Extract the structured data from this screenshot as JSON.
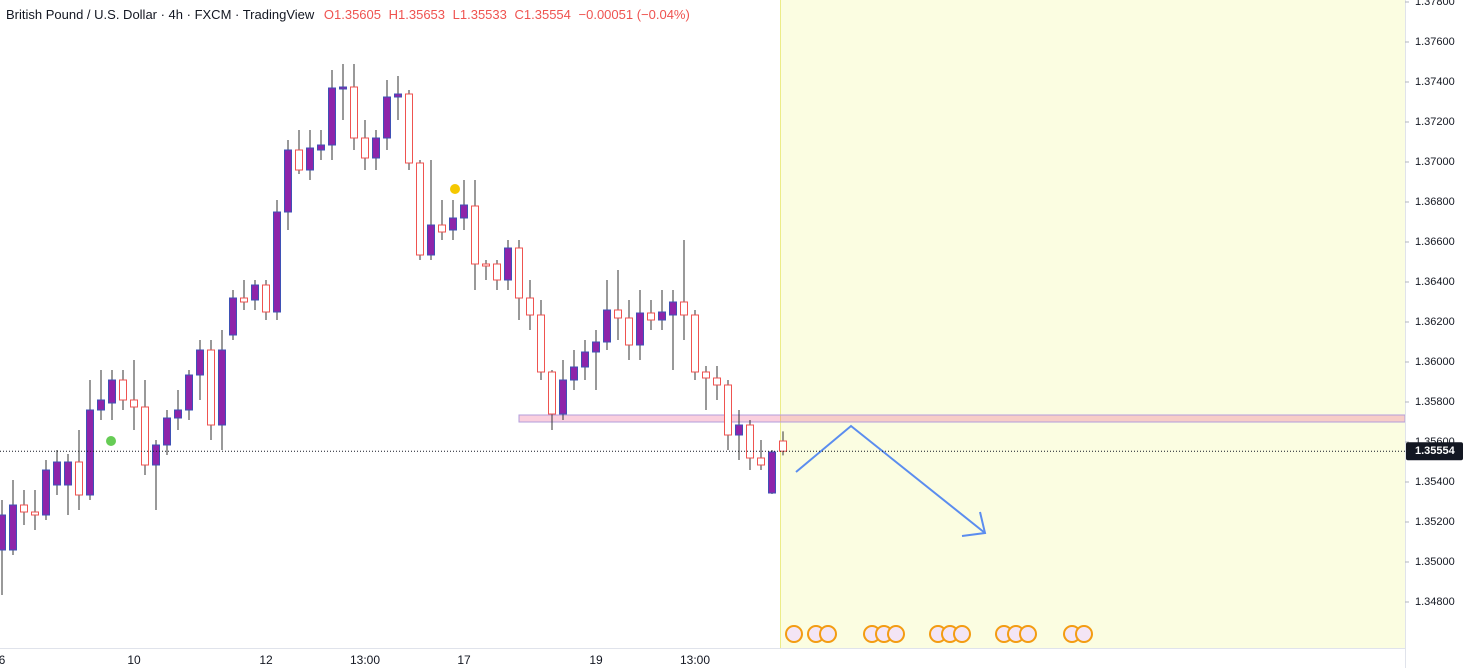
{
  "chart_data": {
    "type": "candlestick",
    "title": "British Pound / U.S. Dollar · 4h · FXCM · TradingView",
    "ohlc_labels": [
      "O1.35605",
      "H1.35653",
      "L1.35533",
      "C1.35554",
      "−0.00051 (−0.04%)"
    ],
    "categories": [
      "6",
      null,
      null,
      null,
      null,
      null,
      null,
      null,
      null,
      null,
      null,
      null,
      "10",
      null,
      null,
      null,
      null,
      null,
      null,
      null,
      null,
      null,
      null,
      null,
      "12",
      null,
      null,
      null,
      null,
      null,
      null,
      null,
      null,
      "13:00",
      null,
      null,
      null,
      null,
      null,
      null,
      null,
      null,
      "17",
      null,
      null,
      null,
      null,
      null,
      null,
      null,
      null,
      null,
      null,
      null,
      "19",
      null,
      null,
      null,
      null,
      null,
      null,
      null,
      null,
      "13:00",
      null,
      null,
      null,
      null,
      null,
      null,
      null,
      null
    ],
    "open": [
      1.3506,
      1.3506,
      1.35285,
      1.3525,
      1.35235,
      1.35385,
      1.35385,
      1.355,
      1.35335,
      1.3576,
      1.35795,
      1.3591,
      1.3581,
      1.35775,
      1.35485,
      1.35585,
      1.3572,
      1.3576,
      1.35935,
      1.3606,
      1.35685,
      1.36135,
      1.3632,
      1.3631,
      1.36385,
      1.3625,
      1.3675,
      1.3706,
      1.3696,
      1.3706,
      1.37085,
      1.37365,
      1.37375,
      1.3712,
      1.3702,
      1.3712,
      1.37325,
      1.3734,
      1.36995,
      1.36535,
      1.36685,
      1.3666,
      1.3672,
      1.3678,
      1.3649,
      1.3649,
      1.3641,
      1.3657,
      1.3632,
      1.36235,
      1.3595,
      1.3574,
      1.3591,
      1.35975,
      1.3605,
      1.361,
      1.3626,
      1.3622,
      1.36085,
      1.36245,
      1.3621,
      1.36235,
      1.363,
      1.36235,
      1.3595,
      1.3592,
      1.35885,
      1.35635,
      1.35685,
      1.3552,
      1.35345,
      1.35605
    ],
    "high": [
      1.3531,
      1.3541,
      1.3536,
      1.3536,
      1.3551,
      1.3556,
      1.3554,
      1.3566,
      1.3591,
      1.3596,
      1.3596,
      1.3596,
      1.3601,
      1.3591,
      1.3561,
      1.3576,
      1.3586,
      1.3596,
      1.3611,
      1.3611,
      1.3616,
      1.3636,
      1.3641,
      1.3641,
      1.3641,
      1.3681,
      1.3711,
      1.3716,
      1.3716,
      1.3716,
      1.3746,
      1.3749,
      1.3749,
      1.3721,
      1.3716,
      1.3741,
      1.3743,
      1.3736,
      1.3701,
      1.3701,
      1.3681,
      1.3681,
      1.3691,
      1.3691,
      1.3651,
      1.3651,
      1.3661,
      1.3661,
      1.3641,
      1.3631,
      1.3596,
      1.3601,
      1.3606,
      1.3611,
      1.3616,
      1.3641,
      1.3646,
      1.3631,
      1.3636,
      1.3631,
      1.3636,
      1.3636,
      1.3661,
      1.3626,
      1.3598,
      1.3598,
      1.3591,
      1.3576,
      1.3571,
      1.3561,
      1.3556,
      1.35653
    ],
    "low": [
      1.34835,
      1.35035,
      1.35185,
      1.3516,
      1.3521,
      1.35335,
      1.35235,
      1.3526,
      1.3531,
      1.3571,
      1.3571,
      1.3576,
      1.3566,
      1.35435,
      1.3526,
      1.35535,
      1.3566,
      1.3571,
      1.3581,
      1.3561,
      1.3556,
      1.3611,
      1.3626,
      1.3626,
      1.3621,
      1.3621,
      1.3666,
      1.3694,
      1.3691,
      1.3701,
      1.3701,
      1.3721,
      1.3706,
      1.3696,
      1.3696,
      1.3706,
      1.3721,
      1.3696,
      1.3651,
      1.3651,
      1.3661,
      1.3661,
      1.3666,
      1.3636,
      1.3641,
      1.3636,
      1.3636,
      1.3621,
      1.3616,
      1.3591,
      1.3566,
      1.3571,
      1.3586,
      1.3591,
      1.3586,
      1.3606,
      1.3611,
      1.3601,
      1.3601,
      1.3616,
      1.3616,
      1.3596,
      1.3611,
      1.3591,
      1.3576,
      1.3581,
      1.3556,
      1.3551,
      1.3546,
      1.3546,
      1.3534,
      1.35533
    ],
    "close": [
      1.35235,
      1.35285,
      1.3525,
      1.35235,
      1.3546,
      1.355,
      1.355,
      1.35335,
      1.3576,
      1.3581,
      1.3591,
      1.3581,
      1.35775,
      1.35485,
      1.35585,
      1.3572,
      1.3576,
      1.35935,
      1.3606,
      1.35685,
      1.3606,
      1.3632,
      1.363,
      1.36385,
      1.3625,
      1.3675,
      1.3706,
      1.3696,
      1.3707,
      1.37085,
      1.3737,
      1.37375,
      1.3712,
      1.3702,
      1.3712,
      1.37325,
      1.3734,
      1.36995,
      1.36535,
      1.36685,
      1.3665,
      1.3672,
      1.36785,
      1.3649,
      1.3648,
      1.3641,
      1.3657,
      1.3632,
      1.36235,
      1.3595,
      1.3574,
      1.3591,
      1.35975,
      1.3605,
      1.361,
      1.3626,
      1.3622,
      1.36085,
      1.36245,
      1.3621,
      1.3625,
      1.363,
      1.36235,
      1.3595,
      1.3592,
      1.35885,
      1.35635,
      1.35685,
      1.3552,
      1.35485,
      1.3555,
      1.35554
    ],
    "up_color": "#8e24aa",
    "down_color": "#ef5350",
    "ylim": [
      1.3457,
      1.3781
    ],
    "yticks": [
      {
        "value": 1.378,
        "label": "1.37800"
      },
      {
        "value": 1.376,
        "label": "1.37600"
      },
      {
        "value": 1.374,
        "label": "1.37400"
      },
      {
        "value": 1.372,
        "label": "1.37200"
      },
      {
        "value": 1.37,
        "label": "1.37000"
      },
      {
        "value": 1.368,
        "label": "1.36800"
      },
      {
        "value": 1.366,
        "label": "1.36600"
      },
      {
        "value": 1.364,
        "label": "1.36400"
      },
      {
        "value": 1.362,
        "label": "1.36200"
      },
      {
        "value": 1.36,
        "label": "1.36000"
      },
      {
        "value": 1.358,
        "label": "1.35800"
      },
      {
        "value": 1.356,
        "label": "1.35600"
      },
      {
        "value": 1.354,
        "label": "1.35400"
      },
      {
        "value": 1.352,
        "label": "1.35200"
      },
      {
        "value": 1.35,
        "label": "1.35000"
      },
      {
        "value": 1.348,
        "label": "1.34800"
      }
    ],
    "last_price": {
      "value": 1.35554,
      "label": "1.35554"
    },
    "grid": false
  }
}
